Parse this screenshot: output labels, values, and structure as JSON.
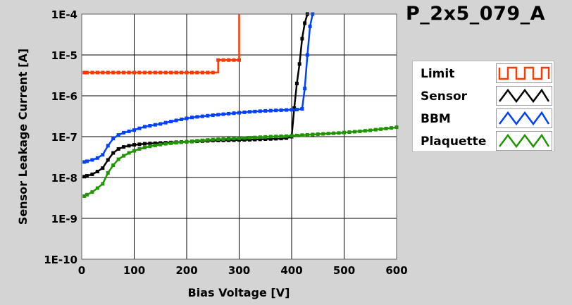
{
  "title": "P_2x5_079_A",
  "chart_data": {
    "type": "line",
    "xlabel": "Bias Voltage [V]",
    "ylabel": "Sensor Leakage Current [A]",
    "xlim": [
      0,
      600
    ],
    "y_scale": "log",
    "ylim": [
      1e-10,
      0.0001
    ],
    "x_ticks": [
      0,
      100,
      200,
      300,
      400,
      500,
      600
    ],
    "x_tick_labels": [
      "0",
      "100",
      "200",
      "300",
      "400",
      "500",
      "600"
    ],
    "y_ticks": [
      1e-10,
      1e-09,
      1e-08,
      1e-07,
      1e-06,
      1e-05,
      0.0001
    ],
    "y_tick_labels": [
      "1E-10",
      "1E-9",
      "1E-8",
      "1E-7",
      "1E-6",
      "1E-5",
      "1E-4"
    ],
    "grid": true,
    "legend_position": "right",
    "series": [
      {
        "name": "Limit",
        "color": "#ff3a00",
        "step": true,
        "x": [
          5,
          10,
          20,
          30,
          40,
          50,
          60,
          70,
          80,
          90,
          100,
          110,
          120,
          130,
          140,
          150,
          160,
          170,
          180,
          190,
          200,
          210,
          220,
          230,
          240,
          250,
          260,
          270,
          280,
          290,
          300,
          300
        ],
        "y": [
          3.7e-06,
          3.7e-06,
          3.7e-06,
          3.7e-06,
          3.7e-06,
          3.7e-06,
          3.7e-06,
          3.7e-06,
          3.7e-06,
          3.7e-06,
          3.7e-06,
          3.7e-06,
          3.7e-06,
          3.7e-06,
          3.7e-06,
          3.7e-06,
          3.7e-06,
          3.7e-06,
          3.7e-06,
          3.7e-06,
          3.7e-06,
          3.7e-06,
          3.7e-06,
          3.7e-06,
          3.7e-06,
          3.7e-06,
          7.5e-06,
          7.5e-06,
          7.5e-06,
          7.5e-06,
          7.5e-06,
          0.0001
        ]
      },
      {
        "name": "Sensor",
        "color": "#000000",
        "step": false,
        "x": [
          5,
          10,
          20,
          30,
          40,
          50,
          60,
          70,
          80,
          90,
          100,
          110,
          120,
          130,
          140,
          150,
          160,
          170,
          180,
          190,
          200,
          210,
          220,
          230,
          240,
          250,
          260,
          270,
          280,
          290,
          300,
          310,
          320,
          330,
          340,
          350,
          360,
          370,
          380,
          390,
          400,
          405,
          410,
          415,
          420,
          425,
          430
        ],
        "y": [
          1.05e-08,
          1.1e-08,
          1.2e-08,
          1.4e-08,
          1.7e-08,
          2.7e-08,
          4e-08,
          5e-08,
          5.6e-08,
          6e-08,
          6.3e-08,
          6.5e-08,
          6.7e-08,
          6.8e-08,
          6.9e-08,
          7e-08,
          7.1e-08,
          7.2e-08,
          7.3e-08,
          7.4e-08,
          7.5e-08,
          7.6e-08,
          7.7e-08,
          7.8e-08,
          7.9e-08,
          8e-08,
          8.05e-08,
          8.1e-08,
          8.15e-08,
          8.2e-08,
          8.3e-08,
          8.35e-08,
          8.4e-08,
          8.5e-08,
          8.6e-08,
          8.7e-08,
          8.8e-08,
          8.9e-08,
          9e-08,
          9.2e-08,
          1e-07,
          5e-07,
          2e-06,
          6e-06,
          2.5e-05,
          6e-05,
          0.0001
        ]
      },
      {
        "name": "BBM",
        "color": "#0040ff",
        "step": false,
        "x": [
          5,
          10,
          20,
          30,
          40,
          50,
          60,
          70,
          80,
          90,
          100,
          110,
          120,
          130,
          140,
          150,
          160,
          170,
          180,
          190,
          200,
          210,
          220,
          230,
          240,
          250,
          260,
          270,
          280,
          290,
          300,
          310,
          320,
          330,
          340,
          350,
          360,
          370,
          380,
          390,
          400,
          410,
          420,
          425,
          430,
          435,
          440
        ],
        "y": [
          2.4e-08,
          2.5e-08,
          2.7e-08,
          3e-08,
          3.6e-08,
          6e-08,
          9e-08,
          1.1e-07,
          1.25e-07,
          1.35e-07,
          1.45e-07,
          1.6e-07,
          1.75e-07,
          1.85e-07,
          1.95e-07,
          2.05e-07,
          2.2e-07,
          2.35e-07,
          2.5e-07,
          2.65e-07,
          2.8e-07,
          2.95e-07,
          3.05e-07,
          3.15e-07,
          3.25e-07,
          3.35e-07,
          3.45e-07,
          3.55e-07,
          3.65e-07,
          3.75e-07,
          3.85e-07,
          3.95e-07,
          4.05e-07,
          4.12e-07,
          4.2e-07,
          4.27e-07,
          4.33e-07,
          4.4e-07,
          4.45e-07,
          4.5e-07,
          4.55e-07,
          4.6e-07,
          4.8e-07,
          1.5e-06,
          1e-05,
          5e-05,
          0.0001
        ]
      },
      {
        "name": "Plaquette",
        "color": "#1f9600",
        "step": false,
        "x": [
          5,
          10,
          20,
          30,
          40,
          50,
          60,
          70,
          80,
          90,
          100,
          110,
          120,
          130,
          140,
          150,
          160,
          170,
          180,
          190,
          200,
          210,
          220,
          230,
          240,
          250,
          260,
          270,
          280,
          290,
          300,
          310,
          320,
          330,
          340,
          350,
          360,
          370,
          380,
          390,
          400,
          410,
          420,
          430,
          440,
          450,
          460,
          470,
          480,
          490,
          500,
          510,
          520,
          530,
          540,
          550,
          560,
          570,
          580,
          590,
          600
        ],
        "y": [
          3.5e-09,
          3.8e-09,
          4.4e-09,
          5.5e-09,
          7e-09,
          1.3e-08,
          2e-08,
          2.8e-08,
          3.4e-08,
          4e-08,
          4.5e-08,
          5e-08,
          5.4e-08,
          5.8e-08,
          6.1e-08,
          6.4e-08,
          6.7e-08,
          6.9e-08,
          7.1e-08,
          7.3e-08,
          7.5e-08,
          7.7e-08,
          7.9e-08,
          8.1e-08,
          8.3e-08,
          8.5e-08,
          8.6e-08,
          8.7e-08,
          8.85e-08,
          9e-08,
          9.1e-08,
          9.25e-08,
          9.4e-08,
          9.55e-08,
          9.7e-08,
          9.85e-08,
          1e-07,
          1.01e-07,
          1.02e-07,
          1.03e-07,
          1.05e-07,
          1.07e-07,
          1.09e-07,
          1.11e-07,
          1.13e-07,
          1.15e-07,
          1.17e-07,
          1.19e-07,
          1.21e-07,
          1.23e-07,
          1.26e-07,
          1.29e-07,
          1.32e-07,
          1.35e-07,
          1.39e-07,
          1.43e-07,
          1.48e-07,
          1.53e-07,
          1.58e-07,
          1.63e-07,
          1.7e-07
        ]
      }
    ]
  }
}
